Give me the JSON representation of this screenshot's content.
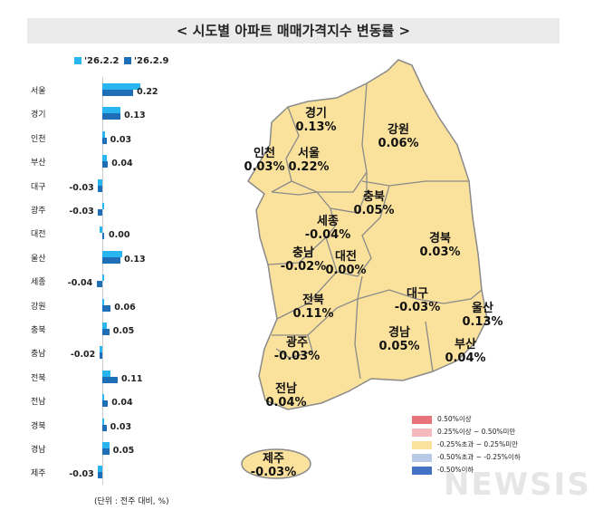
{
  "title": "< 시도별 아파트 매매가격지수 변동률 >",
  "unit_note": "(단위 : 전주 대비, %)",
  "colors": {
    "prev": "#29b6f0",
    "curr": "#1f6fb8",
    "map_fill": "#fbe29c",
    "map_border": "#8a8a8a"
  },
  "chart_data": {
    "type": "bar",
    "orientation": "horizontal",
    "categories": [
      "서울",
      "경기",
      "인천",
      "부산",
      "대구",
      "광주",
      "대전",
      "울산",
      "세종",
      "강원",
      "충북",
      "충남",
      "전북",
      "전남",
      "경북",
      "경남",
      "제주"
    ],
    "series": [
      {
        "name": "'26.2.2",
        "values": [
          0.27,
          0.13,
          0.02,
          0.03,
          -0.03,
          0.0,
          -0.02,
          0.14,
          0.0,
          0.01,
          0.03,
          -0.02,
          0.06,
          0.0,
          0.0,
          0.05,
          -0.03
        ]
      },
      {
        "name": "'26.2.9",
        "values": [
          0.22,
          0.13,
          0.03,
          0.04,
          -0.03,
          -0.03,
          0.0,
          0.13,
          -0.04,
          0.06,
          0.05,
          -0.02,
          0.11,
          0.04,
          0.03,
          0.05,
          -0.03
        ]
      }
    ],
    "data_labels": [
      "0.22",
      "0.13",
      "0.03",
      "0.04",
      "-0.03",
      "-0.03",
      "0.00",
      "0.13",
      "-0.04",
      "0.06",
      "0.05",
      "-0.02",
      "0.11",
      "0.04",
      "0.03",
      "0.05",
      "-0.03"
    ],
    "legend_position": "top"
  },
  "map": {
    "regions": [
      {
        "name": "경기",
        "value": "0.13%"
      },
      {
        "name": "강원",
        "value": "0.06%"
      },
      {
        "name": "인천",
        "value": "0.03%"
      },
      {
        "name": "서울",
        "value": "0.22%"
      },
      {
        "name": "충북",
        "value": "0.05%"
      },
      {
        "name": "세종",
        "value": "-0.04%"
      },
      {
        "name": "경북",
        "value": "0.03%"
      },
      {
        "name": "충남",
        "value": "-0.02%"
      },
      {
        "name": "대전",
        "value": "0.00%"
      },
      {
        "name": "대구",
        "value": "-0.03%"
      },
      {
        "name": "울산",
        "value": "0.13%"
      },
      {
        "name": "전북",
        "value": "0.11%"
      },
      {
        "name": "경남",
        "value": "0.05%"
      },
      {
        "name": "광주",
        "value": "-0.03%"
      },
      {
        "name": "부산",
        "value": "0.04%"
      },
      {
        "name": "전남",
        "value": "0.04%"
      },
      {
        "name": "제주",
        "value": "-0.03%"
      }
    ],
    "legend": [
      {
        "label": "0.50%이상",
        "color": "#e8737a"
      },
      {
        "label": "0.25%이상 ~ 0.50%미만",
        "color": "#f4b8bd"
      },
      {
        "label": "-0.25%초과 ~ 0.25%미만",
        "color": "#fbe29c"
      },
      {
        "label": "-0.50%초과 ~ -0.25%이하",
        "color": "#b9c9e8"
      },
      {
        "label": "-0.50%이하",
        "color": "#4472c4"
      }
    ]
  },
  "watermark": "뉴시스"
}
